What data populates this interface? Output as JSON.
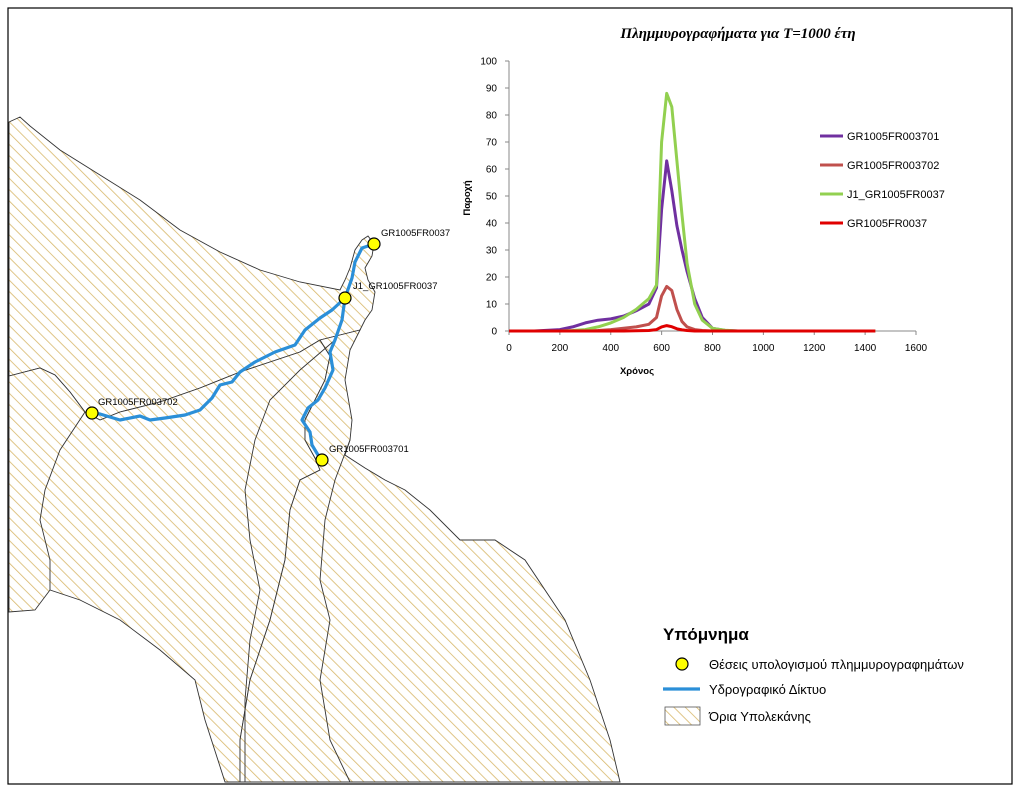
{
  "colors": {
    "boundary_hatch": "#d8b86a",
    "river": "#2b8fd8",
    "point_fill": "#ffff00",
    "series": [
      "#7030a0",
      "#c0504d",
      "#92d050",
      "#e00000"
    ]
  },
  "map": {
    "points": [
      {
        "label": "GR1005FR0037"
      },
      {
        "label": "J1_GR1005FR0037"
      },
      {
        "label": "GR1005FR003702"
      },
      {
        "label": "GR1005FR003701"
      }
    ]
  },
  "map_legend": {
    "title": "Υπόμνημα",
    "items": [
      {
        "icon": "yellow-circle-icon",
        "label": "Θέσεις υπολογισμού πλημμυρογραφημάτων"
      },
      {
        "icon": "blue-line-icon",
        "label": "Υδρογραφικό Δίκτυο"
      },
      {
        "icon": "hatched-box-icon",
        "label": "Όρια Υπολεκάνης"
      }
    ]
  },
  "chart_data": {
    "type": "line",
    "title": "Πλημμυρογραφήματα για Τ=1000 έτη",
    "xlabel": "Χρόνος",
    "ylabel": "Παροχή",
    "xlim": [
      0,
      1600
    ],
    "ylim": [
      0,
      100
    ],
    "xticks": [
      0,
      200,
      400,
      600,
      800,
      1000,
      1200,
      1400,
      1600
    ],
    "yticks": [
      0,
      10,
      20,
      30,
      40,
      50,
      60,
      70,
      80,
      90,
      100
    ],
    "grid": false,
    "legend_position": "right",
    "x": [
      0,
      100,
      200,
      250,
      300,
      350,
      400,
      450,
      500,
      550,
      580,
      600,
      620,
      640,
      660,
      680,
      700,
      730,
      760,
      800,
      850,
      900,
      1000,
      1200,
      1440
    ],
    "series": [
      {
        "name": "GR1005FR003701",
        "values": [
          0,
          0,
          0.5,
          1.5,
          3,
          4,
          4.5,
          5.5,
          7.5,
          10,
          16,
          45,
          63,
          52,
          39,
          30,
          22,
          12,
          5,
          1,
          0.2,
          0,
          0,
          0,
          0
        ]
      },
      {
        "name": "GR1005FR003702",
        "values": [
          0,
          0,
          0,
          0,
          0,
          0.2,
          0.5,
          1,
          1.5,
          2.5,
          5,
          13,
          16.5,
          15,
          8,
          3.5,
          1.5,
          0.5,
          0.2,
          0,
          0,
          0,
          0,
          0,
          0
        ]
      },
      {
        "name": "J1_GR1005FR0037",
        "values": [
          0,
          0,
          0,
          0.2,
          0.5,
          1.5,
          3,
          5,
          8,
          12,
          17,
          70,
          88,
          83,
          63,
          43,
          25,
          10,
          4,
          1,
          0.3,
          0,
          0,
          0,
          0
        ]
      },
      {
        "name": "GR1005FR0037",
        "values": [
          0,
          0,
          0,
          0,
          0,
          0,
          0,
          0,
          0.1,
          0.2,
          0.5,
          1.5,
          2,
          1.6,
          0.8,
          0.4,
          0.2,
          0,
          0,
          0,
          0,
          0,
          0,
          0,
          0
        ]
      }
    ]
  }
}
